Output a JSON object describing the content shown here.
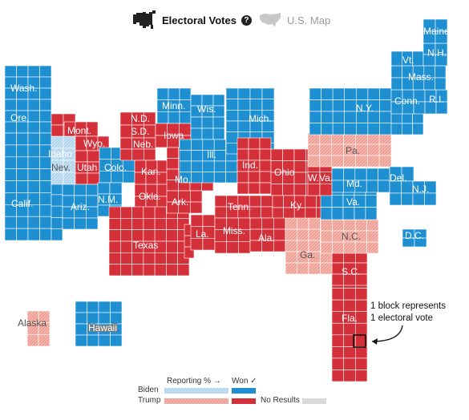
{
  "header": {
    "electoral_votes_label": "Electoral Votes",
    "us_map_label": "U.S. Map",
    "help_glyph": "?",
    "active_view": "Electoral Votes"
  },
  "colors": {
    "biden_won": "#1e8fd0",
    "trump_won": "#d4303a",
    "trump_reporting": "#f4b2a8",
    "biden_reporting": "#c5e0f2",
    "no_results": "#d9d9d9"
  },
  "states": [
    {
      "abbr": "Wash.",
      "status": "biden_won"
    },
    {
      "abbr": "Ore.",
      "status": "biden_won"
    },
    {
      "abbr": "Calif.",
      "status": "biden_won"
    },
    {
      "abbr": "Nev.",
      "status": "biden_reporting"
    },
    {
      "abbr": "Idaho",
      "status": "trump_won"
    },
    {
      "abbr": "Mont.",
      "status": "trump_won"
    },
    {
      "abbr": "Wyo.",
      "status": "trump_won"
    },
    {
      "abbr": "Utah",
      "status": "trump_won"
    },
    {
      "abbr": "Colo.",
      "status": "biden_won"
    },
    {
      "abbr": "Ariz.",
      "status": "biden_won"
    },
    {
      "abbr": "N.M.",
      "status": "biden_won"
    },
    {
      "abbr": "N.D.",
      "status": "trump_won"
    },
    {
      "abbr": "S.D.",
      "status": "trump_won"
    },
    {
      "abbr": "Neb.",
      "status": "trump_won"
    },
    {
      "abbr": "Kan.",
      "status": "trump_won"
    },
    {
      "abbr": "Okla.",
      "status": "trump_won"
    },
    {
      "abbr": "Texas",
      "status": "trump_won"
    },
    {
      "abbr": "Minn.",
      "status": "biden_won"
    },
    {
      "abbr": "Iowa",
      "status": "trump_won"
    },
    {
      "abbr": "Mo.",
      "status": "trump_won"
    },
    {
      "abbr": "Ark.",
      "status": "trump_won"
    },
    {
      "abbr": "La.",
      "status": "trump_won"
    },
    {
      "abbr": "Wis.",
      "status": "biden_won"
    },
    {
      "abbr": "Ill.",
      "status": "biden_won"
    },
    {
      "abbr": "Mich.",
      "status": "biden_won"
    },
    {
      "abbr": "Ind.",
      "status": "trump_won"
    },
    {
      "abbr": "Ohio",
      "status": "trump_won"
    },
    {
      "abbr": "Ky.",
      "status": "trump_won"
    },
    {
      "abbr": "Tenn.",
      "status": "trump_won"
    },
    {
      "abbr": "Miss.",
      "status": "trump_won"
    },
    {
      "abbr": "Ala.",
      "status": "trump_won"
    },
    {
      "abbr": "Ga.",
      "status": "trump_reporting"
    },
    {
      "abbr": "Fla.",
      "status": "trump_won"
    },
    {
      "abbr": "S.C.",
      "status": "trump_won"
    },
    {
      "abbr": "N.C.",
      "status": "trump_reporting"
    },
    {
      "abbr": "Va.",
      "status": "biden_won"
    },
    {
      "abbr": "W.Va.",
      "status": "trump_won"
    },
    {
      "abbr": "Pa.",
      "status": "trump_reporting"
    },
    {
      "abbr": "Md.",
      "status": "biden_won"
    },
    {
      "abbr": "Del.",
      "status": "biden_won"
    },
    {
      "abbr": "N.J.",
      "status": "biden_won"
    },
    {
      "abbr": "N.Y.",
      "status": "biden_won"
    },
    {
      "abbr": "Conn.",
      "status": "biden_won"
    },
    {
      "abbr": "R.I.",
      "status": "biden_won"
    },
    {
      "abbr": "Mass.",
      "status": "biden_won"
    },
    {
      "abbr": "Vt.",
      "status": "biden_won"
    },
    {
      "abbr": "N.H.",
      "status": "biden_won"
    },
    {
      "abbr": "Maine",
      "status": "biden_won"
    },
    {
      "abbr": "D.C.",
      "status": "biden_won"
    },
    {
      "abbr": "Alaska",
      "status": "trump_reporting"
    },
    {
      "abbr": "Hawaii",
      "status": "biden_won"
    }
  ],
  "annotation": {
    "line1": "1 block represents",
    "line2": "1 electoral vote"
  },
  "legend": {
    "reporting_label": "Reporting % →",
    "won_label": "Won ✓",
    "biden_label": "Biden",
    "trump_label": "Trump",
    "no_results_label": "No Results"
  },
  "icons": {
    "electoral_icon": "cartogram-us-icon",
    "map_icon": "us-map-icon",
    "arrow": "curved-arrow-icon"
  }
}
